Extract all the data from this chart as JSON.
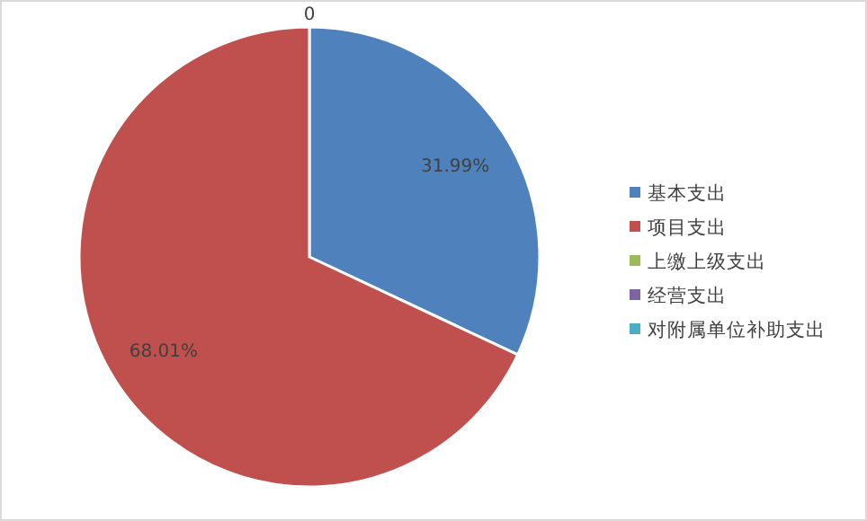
{
  "chart_data": {
    "type": "pie",
    "categories": [
      "基本支出",
      "项目支出",
      "上缴上级支出",
      "经营支出",
      "对附属单位补助支出"
    ],
    "values": [
      31.99,
      68.01,
      0,
      0,
      0
    ],
    "colors": [
      "#4f81bd",
      "#c0504d",
      "#9bbb59",
      "#8064a2",
      "#4bacc6"
    ],
    "value_labels": [
      "31.99%",
      "68.01%",
      "0",
      null,
      null
    ],
    "legend": "right"
  }
}
